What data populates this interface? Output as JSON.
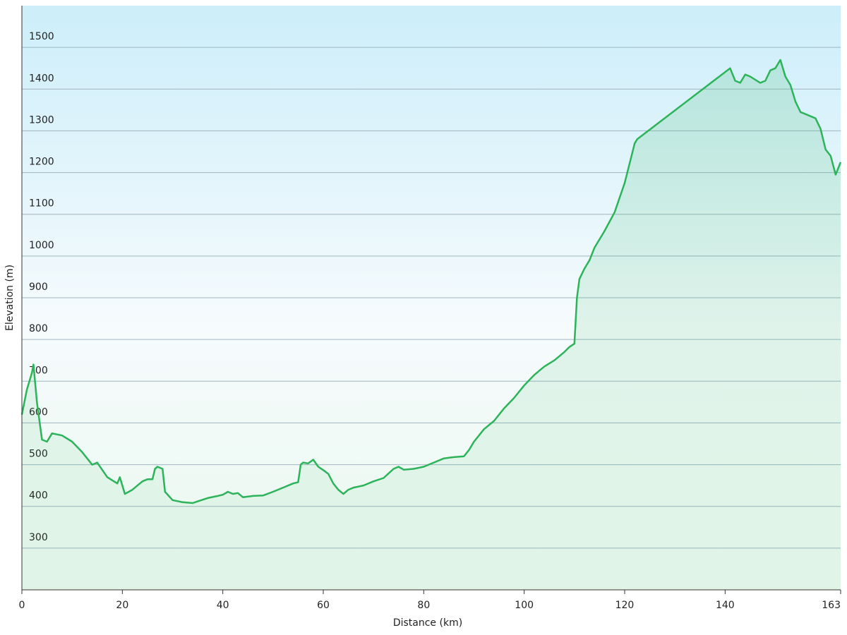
{
  "chart_data": {
    "type": "area",
    "x_label": "Distance  (km)",
    "y_label": "Elevation (m)",
    "color": "#2db35a",
    "xlim": [
      0,
      163
    ],
    "ylim": [
      200,
      1600
    ],
    "xticks": [
      0,
      20,
      40,
      60,
      80,
      100,
      120,
      140,
      163
    ],
    "yticks": [
      300,
      400,
      500,
      600,
      700,
      800,
      900,
      1000,
      1100,
      1200,
      1300,
      1400,
      1500
    ],
    "grid": true,
    "x": [
      0,
      1,
      2,
      2.3,
      3,
      4,
      5,
      6,
      8,
      10,
      12,
      14,
      15,
      17,
      19,
      19.5,
      20.5,
      22,
      24,
      25,
      26,
      26.5,
      27,
      28,
      28.5,
      30,
      32,
      34,
      35,
      37,
      39,
      40,
      41,
      42,
      43,
      44,
      46,
      48,
      50,
      52,
      54,
      55,
      55.5,
      56,
      57,
      58,
      59,
      60,
      61,
      62,
      63,
      64,
      65,
      66,
      68,
      70,
      72,
      74,
      75,
      76,
      78,
      80,
      82,
      84,
      86,
      88,
      89,
      90,
      92,
      94,
      96,
      98,
      100,
      102,
      104,
      106,
      108,
      109,
      110,
      110.5,
      111,
      112,
      113,
      114,
      116,
      118,
      120,
      122,
      122.5,
      141,
      142,
      143,
      144,
      145,
      147,
      148,
      149,
      150,
      151,
      152,
      153,
      154,
      155,
      157,
      158,
      159,
      160,
      161,
      162,
      163
    ],
    "values": [
      620,
      680,
      720,
      740,
      650,
      560,
      555,
      575,
      570,
      555,
      530,
      500,
      505,
      470,
      455,
      470,
      430,
      440,
      460,
      465,
      465,
      490,
      495,
      490,
      435,
      415,
      410,
      408,
      412,
      420,
      425,
      428,
      435,
      430,
      432,
      422,
      425,
      426,
      435,
      445,
      455,
      458,
      500,
      505,
      503,
      512,
      495,
      487,
      478,
      455,
      440,
      430,
      440,
      445,
      450,
      460,
      468,
      490,
      495,
      488,
      490,
      495,
      505,
      515,
      518,
      520,
      535,
      555,
      585,
      605,
      635,
      660,
      690,
      715,
      735,
      750,
      770,
      782,
      790,
      900,
      945,
      970,
      990,
      1020,
      1060,
      1105,
      1175,
      1270,
      1280,
      1450,
      1420,
      1415,
      1435,
      1430,
      1415,
      1420,
      1445,
      1450,
      1470,
      1430,
      1410,
      1370,
      1345,
      1335,
      1330,
      1305,
      1255,
      1240,
      1195,
      1225
    ]
  }
}
